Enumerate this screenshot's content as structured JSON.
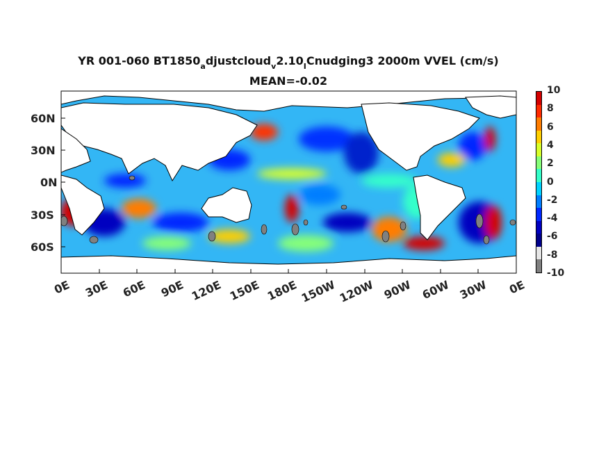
{
  "title": {
    "line1_pre": "YR 001-060 BT1850",
    "line1_sub1": "a",
    "line1_mid1": "djustcloud",
    "line1_sub2": "v",
    "line1_mid2": "2.10",
    "line1_sub3": "I",
    "line1_post": "Cnudging3 2000m VVEL (cm/s)",
    "line2": "MEAN=-0.02"
  },
  "map": {
    "y_ticks": [
      "60N",
      "30N",
      "0N",
      "30S",
      "60S"
    ],
    "x_ticks": [
      "0E",
      "30E",
      "60E",
      "90E",
      "120E",
      "150E",
      "180E",
      "150W",
      "120W",
      "90W",
      "60W",
      "30W",
      "0E"
    ],
    "land_color": "#ffffff",
    "missing_color": "#808080",
    "ocean_base_color": "#33b6f5"
  },
  "colorbar": {
    "labels": [
      "10",
      "8",
      "6",
      "4",
      "2",
      "0",
      "-2",
      "-4",
      "-6",
      "-8",
      "-10"
    ],
    "colors": [
      "#d40000",
      "#ff2a00",
      "#ff7d00",
      "#ffcf00",
      "#d8ff29",
      "#86ff79",
      "#34ffca",
      "#00d2ff",
      "#007eff",
      "#0028ff",
      "#0000c0",
      "#00008a",
      "#e6e6e6",
      "#808080"
    ]
  }
}
